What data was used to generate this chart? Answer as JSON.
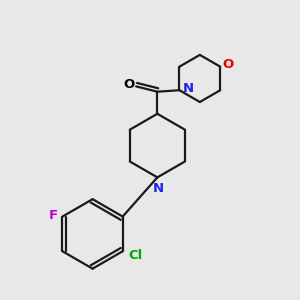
{
  "bg_color": "#e8e8e8",
  "bond_color": "#1a1a1a",
  "N_color": "#2222ee",
  "O_carbonyl_color": "#000000",
  "O_morph_color": "#ee0000",
  "F_color": "#cc00cc",
  "Cl_color": "#00aa00",
  "line_width": 1.6,
  "figsize": [
    3.0,
    3.0
  ],
  "dpi": 100,
  "xlim": [
    0,
    10
  ],
  "ylim": [
    0,
    10
  ]
}
